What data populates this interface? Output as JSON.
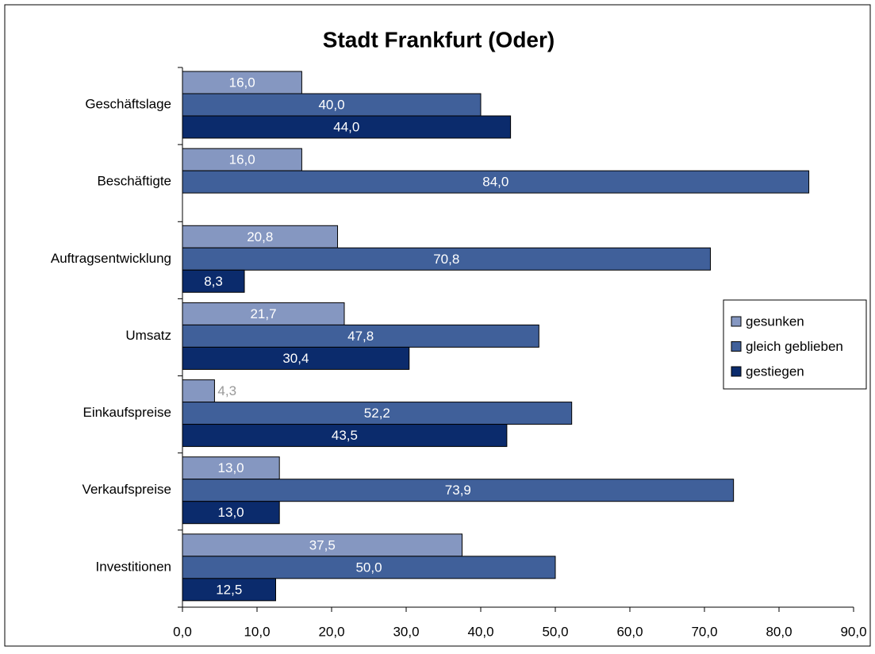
{
  "chart_data": {
    "type": "bar",
    "orientation": "horizontal",
    "title": "Stadt Frankfurt (Oder)",
    "categories": [
      "Geschäftslage",
      "Beschäftigte",
      "Auftragsentwicklung",
      "Umsatz",
      "Einkaufspreise",
      "Verkaufspreise",
      "Investitionen"
    ],
    "series": [
      {
        "name": "gesunken",
        "color": "#8597c1",
        "values": [
          16.0,
          16.0,
          20.8,
          21.7,
          4.3,
          13.0,
          37.5
        ],
        "value_labels": [
          "16,0",
          "16,0",
          "20,8",
          "21,7",
          "4,3",
          "13,0",
          "37,5"
        ]
      },
      {
        "name": "gleich geblieben",
        "color": "#40609a",
        "values": [
          40.0,
          84.0,
          70.8,
          47.8,
          52.2,
          73.9,
          50.0
        ],
        "value_labels": [
          "40,0",
          "84,0",
          "70,8",
          "47,8",
          "52,2",
          "73,9",
          "50,0"
        ]
      },
      {
        "name": "gestiegen",
        "color": "#0b2b6c",
        "values": [
          44.0,
          null,
          8.3,
          30.4,
          43.5,
          13.0,
          12.5
        ],
        "value_labels": [
          "44,0",
          null,
          "8,3",
          "30,4",
          "43,5",
          "13,0",
          "12,5"
        ]
      }
    ],
    "xlim": [
      0,
      90
    ],
    "xticks": [
      {
        "value": 0,
        "label": "0,0"
      },
      {
        "value": 10,
        "label": "10,0"
      },
      {
        "value": 20,
        "label": "20,0"
      },
      {
        "value": 30,
        "label": "30,0"
      },
      {
        "value": 40,
        "label": "40,0"
      },
      {
        "value": 50,
        "label": "50,0"
      },
      {
        "value": 60,
        "label": "60,0"
      },
      {
        "value": 70,
        "label": "70,0"
      },
      {
        "value": 80,
        "label": "80,0"
      },
      {
        "value": 90,
        "label": "90,0"
      }
    ],
    "legend": "right"
  }
}
